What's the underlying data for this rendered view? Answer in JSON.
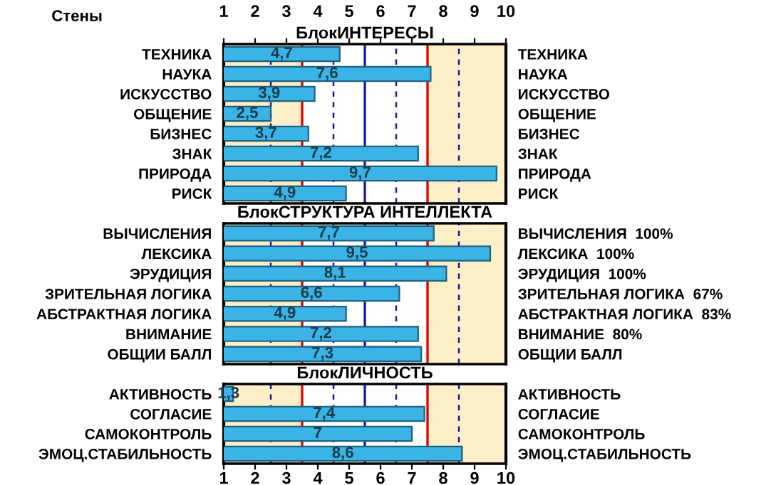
{
  "chart_data": [
    {
      "type": "bar",
      "orientation": "horizontal",
      "title": "БлокИНТЕРЕСЫ",
      "x2label": "Стены",
      "categories": [
        "ТЕХНИКА",
        "НАУКА",
        "ИСКУССТВО",
        "ОБЩЕНИЕ",
        "БИЗНЕС",
        "ЗНАК",
        "ПРИРОДА",
        "РИСК"
      ],
      "y2_categories": [
        "ТЕХНИКА",
        "НАУКА",
        "ИСКУССТВО",
        "ОБЩЕНИЕ",
        "БИЗНЕС",
        "ЗНАК",
        "ПРИРОДА",
        "РИСК"
      ],
      "values": [
        4.7,
        7.6,
        3.9,
        2.5,
        3.7,
        7.2,
        9.7,
        4.9
      ],
      "value_labels": [
        "4,7",
        "7,6",
        "3,9",
        "2,5",
        "3,7",
        "7,2",
        "9,7",
        "4,9"
      ],
      "color": "#3ab4e6",
      "x2lim": [
        1,
        10
      ],
      "x2ticks": [
        1,
        2,
        3,
        4,
        5,
        6,
        7,
        8,
        9,
        10
      ],
      "bands": [
        {
          "axis": "x",
          "from": 1,
          "to": 3.5,
          "color": "#fdf0c8"
        },
        {
          "axis": "x",
          "from": 7.5,
          "to": 10,
          "color": "#fdf0c8"
        }
      ],
      "ref_lines": [
        {
          "axis": "x",
          "value": 2.5,
          "color": "#1a1a9a",
          "line_style": "dashed"
        },
        {
          "axis": "x",
          "value": 3.5,
          "color": "#e00000",
          "line_style": "solid"
        },
        {
          "axis": "x",
          "value": 4.5,
          "color": "#1a1a9a",
          "line_style": "dashed"
        },
        {
          "axis": "x",
          "value": 5.5,
          "color": "#1a1a9a",
          "line_style": "solid"
        },
        {
          "axis": "x",
          "value": 6.5,
          "color": "#1a1a9a",
          "line_style": "dashed"
        },
        {
          "axis": "x",
          "value": 7.5,
          "color": "#e00000",
          "line_style": "solid"
        },
        {
          "axis": "x",
          "value": 8.5,
          "color": "#1a1a9a",
          "line_style": "dashed"
        }
      ]
    },
    {
      "type": "bar",
      "orientation": "horizontal",
      "title": "БлокСТРУКТУРА ИНТЕЛЛЕКТА",
      "categories": [
        "ВЫЧИСЛЕНИЯ",
        "ЛЕКСИКА",
        "ЭРУДИЦИЯ",
        "ЗРИТЕЛЬНАЯ ЛОГИКА",
        "АБСТРАКТНАЯ ЛОГИКА",
        "ВНИМАНИЕ",
        "ОБЩИИ БАЛЛ"
      ],
      "y2_categories": [
        "ВЫЧИСЛЕНИЯ  100%",
        "ЛЕКСИКА  100%",
        "ЭРУДИЦИЯ  100%",
        "ЗРИТЕЛЬНАЯ ЛОГИКА  67%",
        "АБСТРАКТНАЯ ЛОГИКА  83%",
        "ВНИМАНИЕ  80%",
        "ОБЩИИ БАЛЛ"
      ],
      "values": [
        7.7,
        9.5,
        8.1,
        6.6,
        4.9,
        7.2,
        7.3
      ],
      "value_labels": [
        "7,7",
        "9,5",
        "8,1",
        "6,6",
        "4,9",
        "7,2",
        "7,3"
      ],
      "color": "#3ab4e6",
      "xlim": [
        1,
        10
      ],
      "tick_labels": "y",
      "bands": [
        {
          "axis": "x",
          "from": 1,
          "to": 3.5,
          "color": "#fdf0c8"
        },
        {
          "axis": "x",
          "from": 7.5,
          "to": 10,
          "color": "#fdf0c8"
        }
      ],
      "ref_lines": [
        {
          "axis": "x",
          "value": 2.5,
          "color": "#1a1a9a",
          "line_style": "dashed"
        },
        {
          "axis": "x",
          "value": 3.5,
          "color": "#e00000",
          "line_style": "solid"
        },
        {
          "axis": "x",
          "value": 4.5,
          "color": "#1a1a9a",
          "line_style": "dashed"
        },
        {
          "axis": "x",
          "value": 5.5,
          "color": "#1a1a9a",
          "line_style": "solid"
        },
        {
          "axis": "x",
          "value": 6.5,
          "color": "#1a1a9a",
          "line_style": "dashed"
        },
        {
          "axis": "x",
          "value": 7.5,
          "color": "#e00000",
          "line_style": "solid"
        },
        {
          "axis": "x",
          "value": 8.5,
          "color": "#1a1a9a",
          "line_style": "dashed"
        }
      ]
    },
    {
      "type": "bar",
      "orientation": "horizontal",
      "title": "БлокЛИЧНОСТЬ",
      "categories": [
        "АКТИВНОСТЬ",
        "СОГЛАСИЕ",
        "САМОКОНТРОЛЬ",
        "ЭМОЦ.СТАБИЛЬНОСТЬ"
      ],
      "y2_categories": [
        "АКТИВНОСТЬ",
        "СОГЛАСИЕ",
        "САМОКОНТРОЛЬ",
        "ЭМОЦ.СТАБИЛЬНОСТЬ"
      ],
      "values": [
        1.3,
        7.4,
        7,
        8.6
      ],
      "value_labels": [
        "1,3",
        "7,4",
        "7",
        "8,6"
      ],
      "color": "#3ab4e6",
      "xlim": [
        1,
        10
      ],
      "xticks": [
        1,
        2,
        3,
        4,
        5,
        6,
        7,
        8,
        9,
        10
      ],
      "bands": [
        {
          "axis": "x",
          "from": 1,
          "to": 3.5,
          "color": "#fdf0c8"
        },
        {
          "axis": "x",
          "from": 7.5,
          "to": 10,
          "color": "#fdf0c8"
        }
      ],
      "ref_lines": [
        {
          "axis": "x",
          "value": 2.5,
          "color": "#1a1a9a",
          "line_style": "dashed"
        },
        {
          "axis": "x",
          "value": 3.5,
          "color": "#e00000",
          "line_style": "solid"
        },
        {
          "axis": "x",
          "value": 4.5,
          "color": "#1a1a9a",
          "line_style": "dashed"
        },
        {
          "axis": "x",
          "value": 5.5,
          "color": "#1a1a9a",
          "line_style": "solid"
        },
        {
          "axis": "x",
          "value": 6.5,
          "color": "#1a1a9a",
          "line_style": "dashed"
        },
        {
          "axis": "x",
          "value": 7.5,
          "color": "#e00000",
          "line_style": "solid"
        },
        {
          "axis": "x",
          "value": 8.5,
          "color": "#1a1a9a",
          "line_style": "dashed"
        }
      ]
    }
  ]
}
